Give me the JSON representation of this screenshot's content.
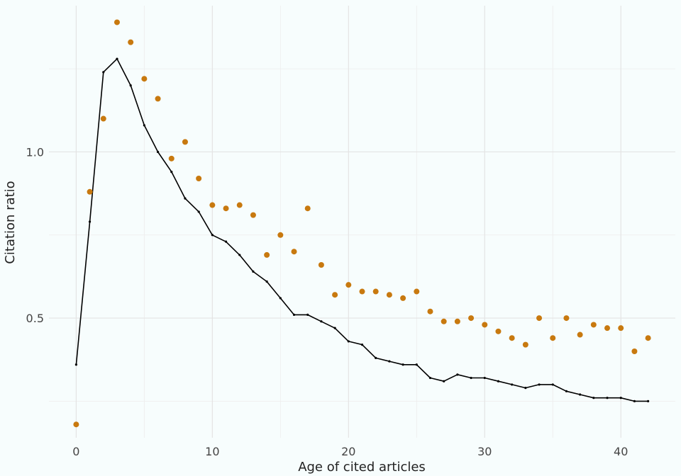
{
  "chart_data": {
    "type": "scatter",
    "xlabel": "Age of cited articles",
    "ylabel": "Citation ratio",
    "xlim": [
      -2,
      44
    ],
    "ylim": [
      0.14,
      1.44
    ],
    "x_ticks": [
      0,
      10,
      20,
      30,
      40
    ],
    "x_tick_labels": [
      "0",
      "10",
      "20",
      "30",
      "40"
    ],
    "y_ticks": [
      0.5,
      1.0
    ],
    "y_tick_labels": [
      "0.5",
      "1.0"
    ],
    "grid": true,
    "legend": "none",
    "series": [
      {
        "kind": "points",
        "color": "#c8790f",
        "x": [
          0,
          1,
          2,
          3,
          4,
          5,
          6,
          7,
          8,
          9,
          10,
          11,
          12,
          13,
          14,
          15,
          16,
          17,
          18,
          19,
          20,
          21,
          22,
          23,
          24,
          25,
          26,
          27,
          28,
          29,
          30,
          31,
          32,
          33,
          34,
          35,
          36,
          37,
          38,
          39,
          40,
          41,
          42
        ],
        "y": [
          0.18,
          0.88,
          1.1,
          1.39,
          1.33,
          1.22,
          1.16,
          0.98,
          1.03,
          0.92,
          0.84,
          0.83,
          0.84,
          0.81,
          0.69,
          0.75,
          0.7,
          0.83,
          0.66,
          0.57,
          0.6,
          0.58,
          0.58,
          0.57,
          0.56,
          0.58,
          0.52,
          0.49,
          0.49,
          0.5,
          0.48,
          0.46,
          0.44,
          0.42,
          0.5,
          0.44,
          0.5,
          0.45,
          0.48,
          0.47,
          0.47,
          0.4,
          0.44
        ]
      },
      {
        "kind": "line",
        "color": "#000000",
        "x": [
          0,
          1,
          2,
          3,
          4,
          5,
          6,
          7,
          8,
          9,
          10,
          11,
          12,
          13,
          14,
          15,
          16,
          17,
          18,
          19,
          20,
          21,
          22,
          23,
          24,
          25,
          26,
          27,
          28,
          29,
          30,
          31,
          32,
          33,
          34,
          35,
          36,
          37,
          38,
          39,
          40,
          41,
          42
        ],
        "y": [
          0.36,
          0.79,
          1.24,
          1.28,
          1.2,
          1.08,
          1.0,
          0.94,
          0.86,
          0.82,
          0.75,
          0.73,
          0.69,
          0.64,
          0.61,
          0.56,
          0.51,
          0.51,
          0.49,
          0.47,
          0.43,
          0.42,
          0.38,
          0.37,
          0.36,
          0.36,
          0.32,
          0.31,
          0.33,
          0.32,
          0.32,
          0.31,
          0.3,
          0.29,
          0.3,
          0.3,
          0.28,
          0.27,
          0.26,
          0.26,
          0.26,
          0.25,
          0.25
        ]
      }
    ]
  }
}
